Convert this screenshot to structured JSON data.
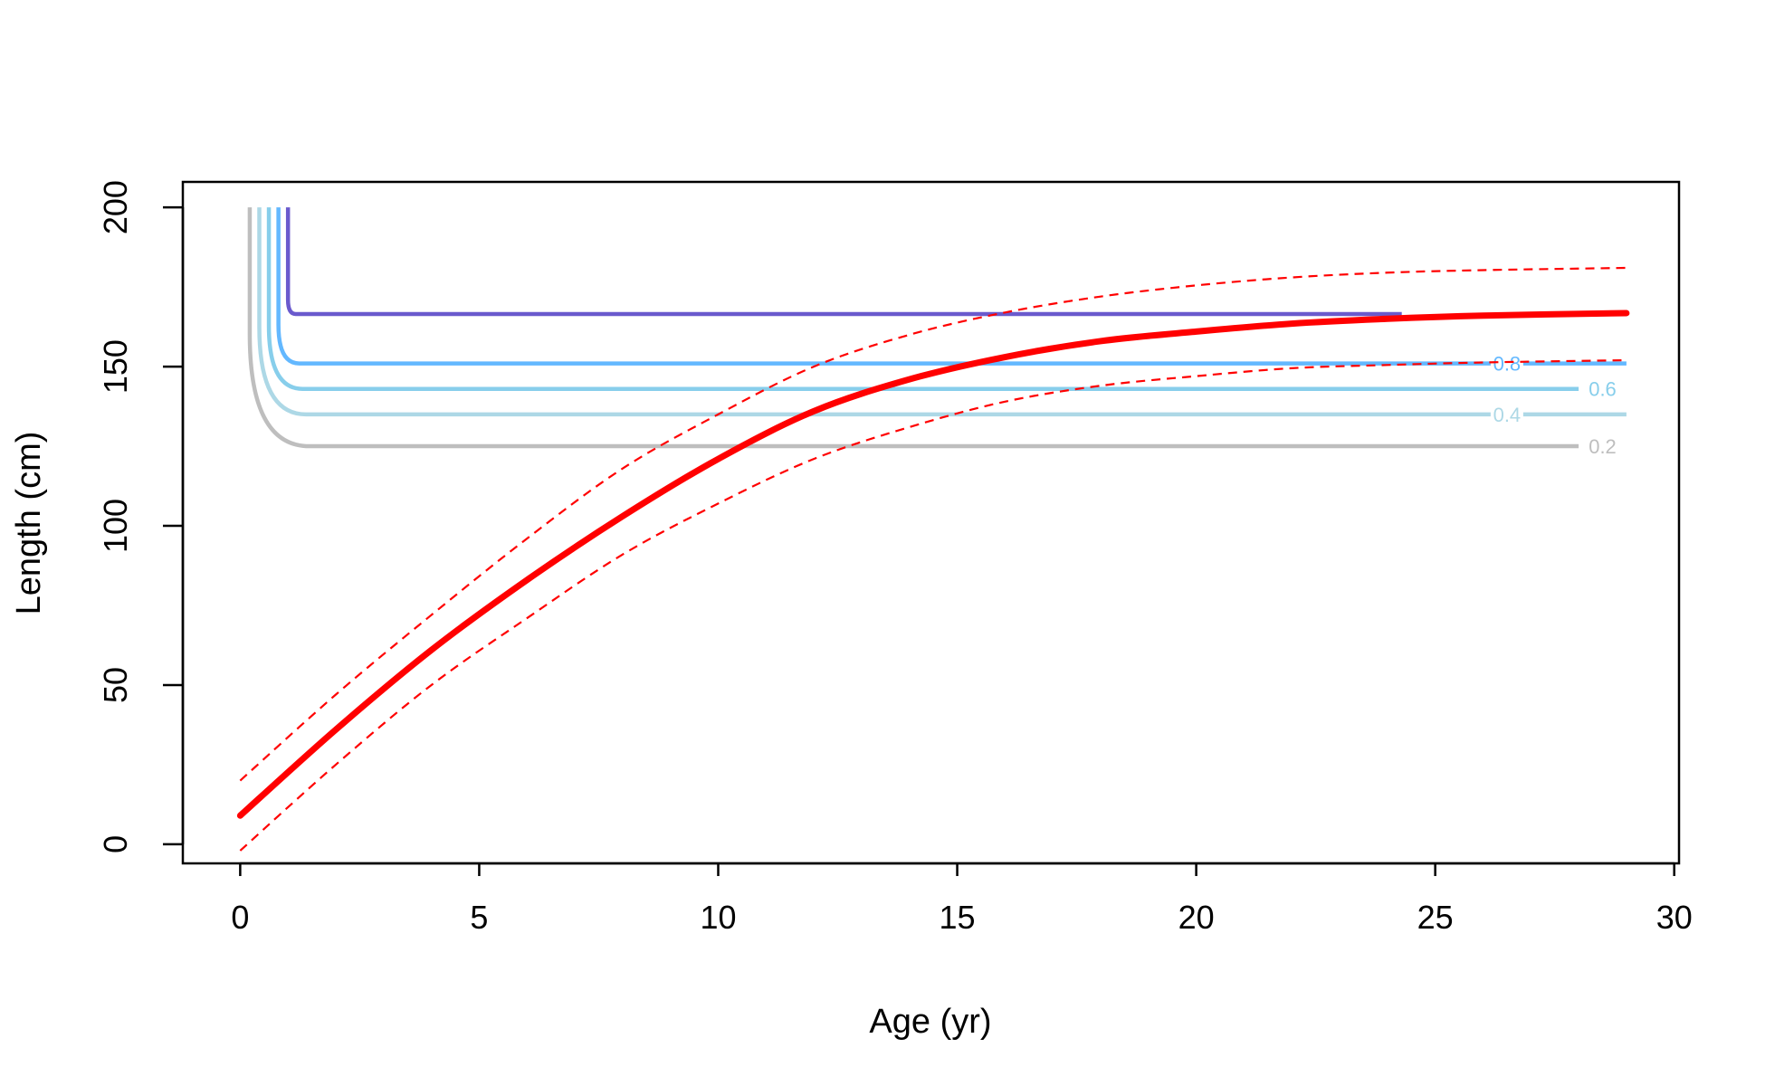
{
  "chart_data": {
    "type": "line",
    "title": "",
    "xlabel": "Age (yr)",
    "ylabel": "Length (cm)",
    "xlim": [
      -1.2,
      30.1
    ],
    "ylim": [
      -6,
      208
    ],
    "xticks": [
      0,
      5,
      10,
      15,
      20,
      25,
      30
    ],
    "yticks": [
      0,
      50,
      100,
      150,
      200
    ],
    "grid": false,
    "legend": "none",
    "growth_curve": {
      "color": "#ff0000",
      "x": [
        0,
        2,
        4,
        6,
        8,
        10,
        12,
        14,
        16,
        18,
        20,
        22,
        24,
        26,
        29
      ],
      "y": [
        9,
        36,
        61,
        83,
        103,
        121,
        136,
        146,
        153,
        158,
        161,
        163.5,
        165,
        166,
        166.8
      ]
    },
    "upper_bound": {
      "color": "#ff0000",
      "x": [
        0,
        2,
        4,
        6,
        8,
        10,
        12,
        14,
        16,
        18,
        20,
        22,
        24,
        26,
        29
      ],
      "y": [
        20,
        47,
        72,
        96,
        118,
        135,
        150,
        160,
        167,
        172,
        175.5,
        178,
        179.5,
        180.3,
        181
      ]
    },
    "lower_bound": {
      "color": "#ff0000",
      "x": [
        0,
        2,
        4,
        6,
        8,
        10,
        12,
        14,
        16,
        18,
        20,
        22,
        24,
        26,
        29
      ],
      "y": [
        -2,
        25,
        50,
        71,
        91,
        107,
        121,
        131,
        139,
        144,
        147,
        149.5,
        150.5,
        151.3,
        152
      ]
    },
    "contours": [
      {
        "label": "0.2",
        "x0": 0.2,
        "x1": 28,
        "y_level": 125,
        "color": "#bebebe",
        "label_x": 28.5
      },
      {
        "label": "0.4",
        "x0": 0.4,
        "x1": 29,
        "y_level": 135,
        "color": "#add8e6",
        "label_x": 26.5
      },
      {
        "label": "0.6",
        "x0": 0.6,
        "x1": 28,
        "y_level": 143,
        "color": "#87ceeb",
        "label_x": 28.5
      },
      {
        "label": "0.8",
        "x0": 0.8,
        "x1": 29,
        "y_level": 151,
        "color": "#63b8ff",
        "label_x": 26.5
      },
      {
        "label": "",
        "x0": 1.0,
        "x1": 24.3,
        "y_level": 166.5,
        "color": "#6a5acd",
        "label_x": 28.8
      }
    ],
    "contour_top": 200
  }
}
